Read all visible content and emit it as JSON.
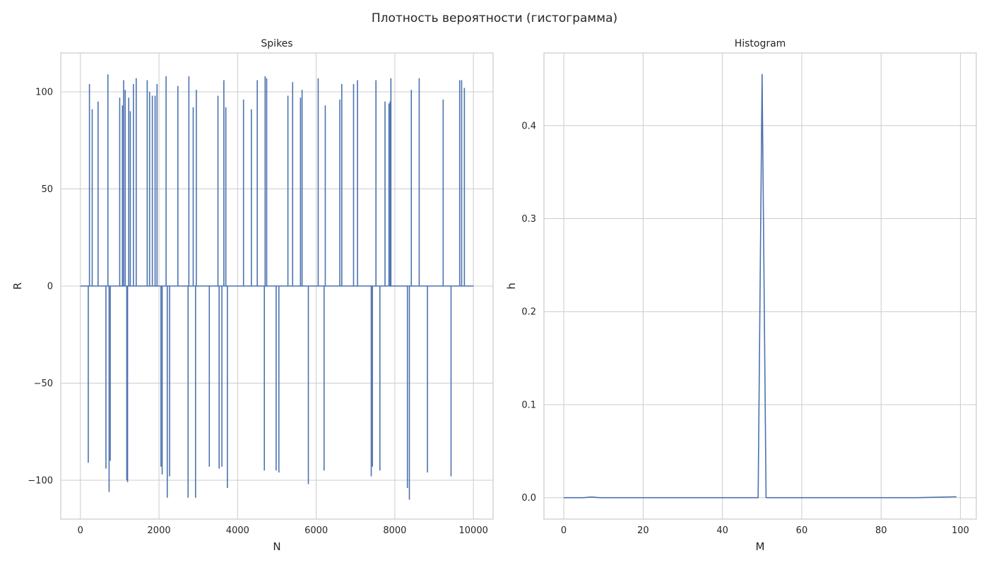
{
  "figure": {
    "title": "Плотность вероятности (гистограмма)"
  },
  "chart_data": [
    {
      "type": "line",
      "title": "Spikes",
      "xlabel": "N",
      "ylabel": "R",
      "xlim": [
        -500,
        10500
      ],
      "ylim": [
        -120,
        120
      ],
      "xticks": [
        0,
        2000,
        4000,
        6000,
        8000,
        10000
      ],
      "yticks": [
        -100,
        -50,
        0,
        50,
        100
      ],
      "grid": true,
      "baseline": {
        "x": [
          0,
          10000
        ],
        "y": 0
      },
      "series": [
        {
          "name": "R",
          "color": "#4c72b0",
          "spikes": [
            [
              200,
              -91
            ],
            [
              230,
              104
            ],
            [
              300,
              91
            ],
            [
              450,
              95
            ],
            [
              650,
              -94
            ],
            [
              700,
              109
            ],
            [
              730,
              -106
            ],
            [
              760,
              -90
            ],
            [
              1000,
              97
            ],
            [
              1070,
              93
            ],
            [
              1100,
              106
            ],
            [
              1140,
              101
            ],
            [
              1180,
              -100
            ],
            [
              1200,
              -101
            ],
            [
              1230,
              97
            ],
            [
              1270,
              90
            ],
            [
              1350,
              104
            ],
            [
              1420,
              107
            ],
            [
              1700,
              106
            ],
            [
              1760,
              100
            ],
            [
              1830,
              98
            ],
            [
              1900,
              98
            ],
            [
              1950,
              104
            ],
            [
              2050,
              -93
            ],
            [
              2080,
              -97
            ],
            [
              2180,
              108
            ],
            [
              2210,
              -109
            ],
            [
              2270,
              -98
            ],
            [
              2480,
              103
            ],
            [
              2740,
              -109
            ],
            [
              2760,
              108
            ],
            [
              2870,
              92
            ],
            [
              2930,
              -109
            ],
            [
              2950,
              101
            ],
            [
              3280,
              -93
            ],
            [
              3500,
              98
            ],
            [
              3530,
              -94
            ],
            [
              3600,
              -93
            ],
            [
              3650,
              106
            ],
            [
              3700,
              92
            ],
            [
              3740,
              -104
            ],
            [
              4150,
              96
            ],
            [
              4350,
              91
            ],
            [
              4500,
              106
            ],
            [
              4680,
              -95
            ],
            [
              4700,
              108
            ],
            [
              4740,
              107
            ],
            [
              4980,
              -95
            ],
            [
              5050,
              -96
            ],
            [
              5280,
              98
            ],
            [
              5400,
              105
            ],
            [
              5600,
              97
            ],
            [
              5640,
              101
            ],
            [
              5800,
              -102
            ],
            [
              6050,
              107
            ],
            [
              6200,
              -95
            ],
            [
              6230,
              93
            ],
            [
              6600,
              96
            ],
            [
              6650,
              104
            ],
            [
              6950,
              104
            ],
            [
              7050,
              106
            ],
            [
              7400,
              -98
            ],
            [
              7430,
              -93
            ],
            [
              7520,
              106
            ],
            [
              7620,
              -95
            ],
            [
              7750,
              95
            ],
            [
              7850,
              94
            ],
            [
              7880,
              95
            ],
            [
              7900,
              107
            ],
            [
              8320,
              -104
            ],
            [
              8370,
              -110
            ],
            [
              8420,
              101
            ],
            [
              8620,
              107
            ],
            [
              8830,
              -96
            ],
            [
              9230,
              96
            ],
            [
              9430,
              -98
            ],
            [
              9650,
              106
            ],
            [
              9700,
              106
            ],
            [
              9770,
              102
            ]
          ]
        }
      ]
    },
    {
      "type": "line",
      "title": "Histogram",
      "xlabel": "M",
      "ylabel": "h",
      "xlim": [
        -5,
        104
      ],
      "ylim": [
        -0.023,
        0.478
      ],
      "xticks": [
        0,
        20,
        40,
        60,
        80,
        100
      ],
      "yticks": [
        0.0,
        0.1,
        0.2,
        0.3,
        0.4
      ],
      "ytick_labels": [
        "0.0",
        "0.1",
        "0.2",
        "0.3",
        "0.4"
      ],
      "grid": true,
      "series": [
        {
          "name": "h",
          "color": "#4c72b0",
          "x": [
            0,
            5,
            7,
            9,
            49,
            50,
            51,
            89,
            95,
            99
          ],
          "y": [
            0.0,
            0.0,
            0.0008,
            0.0,
            0.0,
            0.455,
            0.0,
            0.0,
            0.0006,
            0.001
          ]
        }
      ]
    }
  ]
}
